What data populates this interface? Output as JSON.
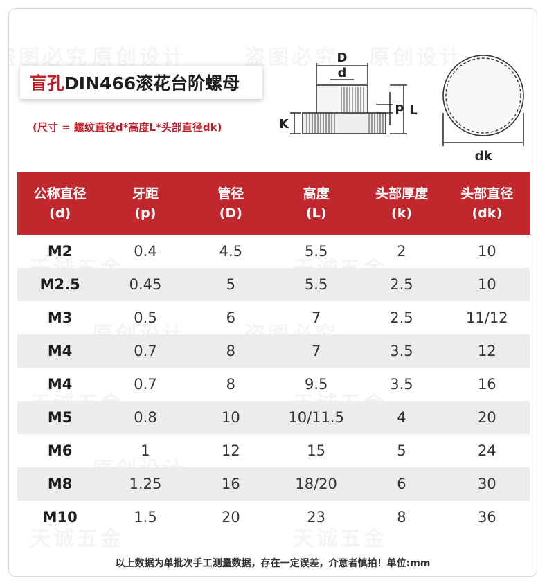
{
  "watermarks": [
    "原创设计",
    "盗图必究",
    "天诚五金"
  ],
  "title": {
    "red": "盲孔",
    "black": "DIN466滚花台阶螺母"
  },
  "subtitle": "(尺寸 = 螺纹直径d*高度L*头部直径dk)",
  "diagram": {
    "labels": {
      "D": "D",
      "d": "d",
      "p": "p",
      "L": "L",
      "K": "K",
      "dk": "dk"
    }
  },
  "table": {
    "headers": [
      {
        "top": "公称直径",
        "bottom": "(d)"
      },
      {
        "top": "牙距",
        "bottom": "(p)"
      },
      {
        "top": "管径",
        "bottom": "(D)"
      },
      {
        "top": "高度",
        "bottom": "(L)"
      },
      {
        "top": "头部厚度",
        "bottom": "(k)"
      },
      {
        "top": "头部直径",
        "bottom": "(dk)"
      }
    ],
    "rows": [
      [
        "M2",
        "0.4",
        "4.5",
        "5.5",
        "2",
        "10"
      ],
      [
        "M2.5",
        "0.45",
        "5",
        "5.5",
        "2.5",
        "10"
      ],
      [
        "M3",
        "0.5",
        "6",
        "7",
        "2.5",
        "11/12"
      ],
      [
        "M4",
        "0.7",
        "8",
        "7",
        "3.5",
        "12"
      ],
      [
        "M4",
        "0.7",
        "8",
        "9.5",
        "3.5",
        "16"
      ],
      [
        "M5",
        "0.8",
        "10",
        "10/11.5",
        "4",
        "20"
      ],
      [
        "M6",
        "1",
        "12",
        "15",
        "5",
        "24"
      ],
      [
        "M8",
        "1.25",
        "16",
        "18/20",
        "6",
        "30"
      ],
      [
        "M10",
        "1.5",
        "20",
        "23",
        "8",
        "36"
      ]
    ]
  },
  "footnote": "以上数据为单批次手工测量数据，存在一定误差，介意者慎拍！单位:mm",
  "colors": {
    "accent": "#c0282d",
    "row_alt": "#ececec"
  }
}
